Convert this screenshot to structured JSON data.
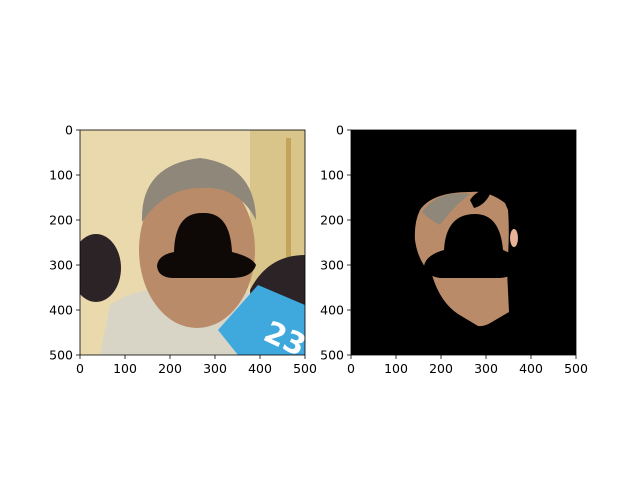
{
  "chart_data": [
    {
      "type": "image",
      "title": "",
      "xlabel": "",
      "ylabel": "",
      "xlim": [
        0,
        500
      ],
      "ylim": [
        500,
        0
      ],
      "xticks": [
        "0",
        "100",
        "200",
        "300",
        "400",
        "500"
      ],
      "yticks": [
        "0",
        "100",
        "200",
        "300",
        "400",
        "500"
      ],
      "content": "photo"
    },
    {
      "type": "image",
      "title": "",
      "xlabel": "",
      "ylabel": "",
      "xlim": [
        0,
        500
      ],
      "ylim": [
        500,
        0
      ],
      "xticks": [
        "0",
        "100",
        "200",
        "300",
        "400",
        "500"
      ],
      "yticks": [
        "0",
        "100",
        "200",
        "300",
        "400",
        "500"
      ],
      "content": "segmentation mask"
    }
  ],
  "colors": {
    "mask_background": "#000000",
    "photo_background": "#e8d7a8",
    "skin": "#b88a68",
    "hair": "#8f8878",
    "shirt": "#d9d6c8",
    "microphone": "#2b2326",
    "mic_flag": "#3fa9dd",
    "blackout_hat": "#0e0807"
  },
  "annotations": {
    "mic_flag_text": "23"
  }
}
